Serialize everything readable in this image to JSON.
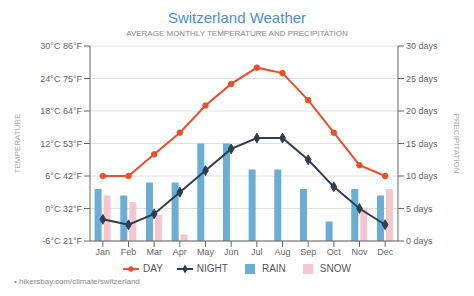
{
  "chart_data": {
    "type": "bar",
    "title": "Switzerland Weather",
    "subtitle": "AVERAGE MONTHLY TEMPERATURE AND PRECIPITATION",
    "y_label": "TEMPERATURE",
    "y2_label": "PRECIPITATION",
    "annotations": [
      "• hikersbay.com/climate/switzerland"
    ],
    "categories": [
      "Jan",
      "Feb",
      "Mar",
      "Apr",
      "May",
      "Jun",
      "Jul",
      "Aug",
      "Sep",
      "Oct",
      "Nov",
      "Dec"
    ],
    "series": [
      {
        "name": "DAY",
        "type": "line",
        "axis": "y",
        "color": "#e8502a",
        "marker": "circle",
        "values": [
          6,
          6,
          10,
          14,
          19,
          23,
          26,
          25,
          20,
          14,
          8,
          6
        ]
      },
      {
        "name": "NIGHT",
        "type": "line",
        "axis": "y",
        "color": "#2c3e50",
        "marker": "diamond",
        "values": [
          -2,
          -3,
          -1,
          3,
          7,
          11,
          13,
          13,
          9,
          4,
          0,
          -3
        ]
      },
      {
        "name": "RAIN",
        "type": "bar",
        "axis": "y2",
        "color": "#6aaed6",
        "values": [
          8,
          7,
          9,
          9,
          15,
          15,
          11,
          11,
          8,
          3,
          8,
          7
        ]
      },
      {
        "name": "SNOW",
        "type": "bar",
        "axis": "y2",
        "color": "#f7c5d0",
        "values": [
          7,
          6,
          4,
          1,
          0,
          0,
          0,
          0,
          0,
          0,
          5,
          8
        ]
      }
    ],
    "ylim": [
      -6,
      30
    ],
    "yticks": [
      {
        "value": -6,
        "label": "-6°C 21°F"
      },
      {
        "value": 0,
        "label": "0°C 32°F"
      },
      {
        "value": 6,
        "label": "6°C 42°F"
      },
      {
        "value": 12,
        "label": "12°C 53°F"
      },
      {
        "value": 18,
        "label": "18°C 64°F"
      },
      {
        "value": 24,
        "label": "24°C 75°F"
      },
      {
        "value": 30,
        "label": "30°C 86°F"
      }
    ],
    "y2lim": [
      0,
      30
    ],
    "y2ticks": [
      {
        "value": 0,
        "label": "0 days"
      },
      {
        "value": 5,
        "label": "5 days"
      },
      {
        "value": 10,
        "label": "10 days"
      },
      {
        "value": 15,
        "label": "15 days"
      },
      {
        "value": 20,
        "label": "20 days"
      },
      {
        "value": 25,
        "label": "25 days"
      },
      {
        "value": 30,
        "label": "30 days"
      }
    ],
    "grid": true,
    "legend": "bottom"
  }
}
